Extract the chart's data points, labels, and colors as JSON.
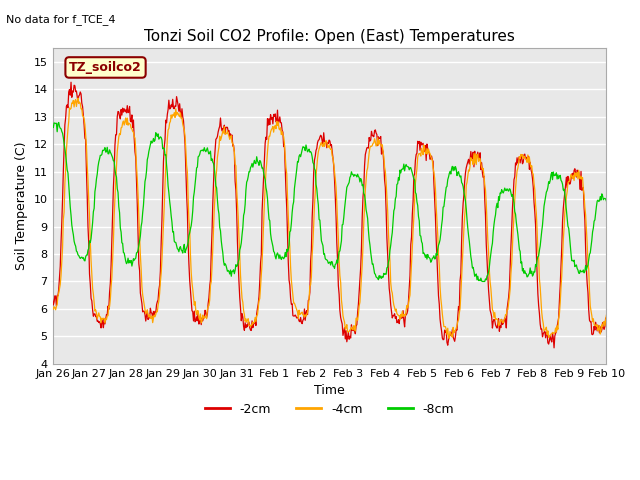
{
  "title": "Tonzi Soil CO2 Profile: Open (East) Temperatures",
  "no_data_label": "No data for f_TCE_4",
  "ylabel": "Soil Temperature (C)",
  "xlabel": "Time",
  "ylim": [
    4.0,
    15.5
  ],
  "yticks": [
    4.0,
    5.0,
    6.0,
    7.0,
    8.0,
    9.0,
    10.0,
    11.0,
    12.0,
    13.0,
    14.0,
    15.0
  ],
  "xtick_labels": [
    "Jan 26",
    "Jan 27",
    "Jan 28",
    "Jan 29",
    "Jan 30",
    "Jan 31",
    "Feb 1",
    "Feb 2",
    "Feb 3",
    "Feb 4",
    "Feb 5",
    "Feb 6",
    "Feb 7",
    "Feb 8",
    "Feb 9",
    "Feb 10"
  ],
  "legend_box_label": "TZ_soilco2",
  "legend_entries": [
    "-2cm",
    "-4cm",
    "-8cm"
  ],
  "legend_colors": [
    "#dd0000",
    "#ffa500",
    "#00cc00"
  ],
  "line_colors": [
    "#dd0000",
    "#ffa500",
    "#00cc00"
  ],
  "plot_bg_color": "#e8e8e8",
  "fig_bg_color": "#ffffff",
  "grid_color": "#ffffff",
  "title_fontsize": 11,
  "axis_fontsize": 9,
  "tick_fontsize": 8,
  "n_days": 15,
  "n_pts": 720
}
